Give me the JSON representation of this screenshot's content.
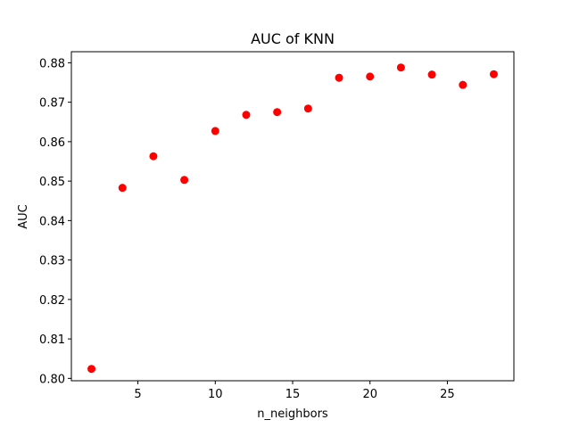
{
  "chart_data": {
    "type": "scatter",
    "title": "AUC of KNN",
    "xlabel": "n_neighbors",
    "ylabel": "AUC",
    "x": [
      2,
      4,
      6,
      8,
      10,
      12,
      14,
      16,
      18,
      20,
      22,
      24,
      26,
      28
    ],
    "y": [
      0.8024,
      0.8483,
      0.8563,
      0.8503,
      0.8627,
      0.8668,
      0.8675,
      0.8684,
      0.8762,
      0.8765,
      0.8788,
      0.877,
      0.8744,
      0.8771
    ],
    "xlim": [
      0.7,
      29.3
    ],
    "ylim": [
      0.7994,
      0.8828
    ],
    "xticks": [
      5,
      10,
      15,
      20,
      25
    ],
    "xtick_labels": [
      "5",
      "10",
      "15",
      "20",
      "25"
    ],
    "yticks": [
      0.8,
      0.81,
      0.82,
      0.83,
      0.84,
      0.85,
      0.86,
      0.87,
      0.88
    ],
    "ytick_labels": [
      "0.80",
      "0.81",
      "0.82",
      "0.83",
      "0.84",
      "0.85",
      "0.86",
      "0.87",
      "0.88"
    ],
    "grid": false,
    "legend": false,
    "marker_color": "#ff0000"
  }
}
